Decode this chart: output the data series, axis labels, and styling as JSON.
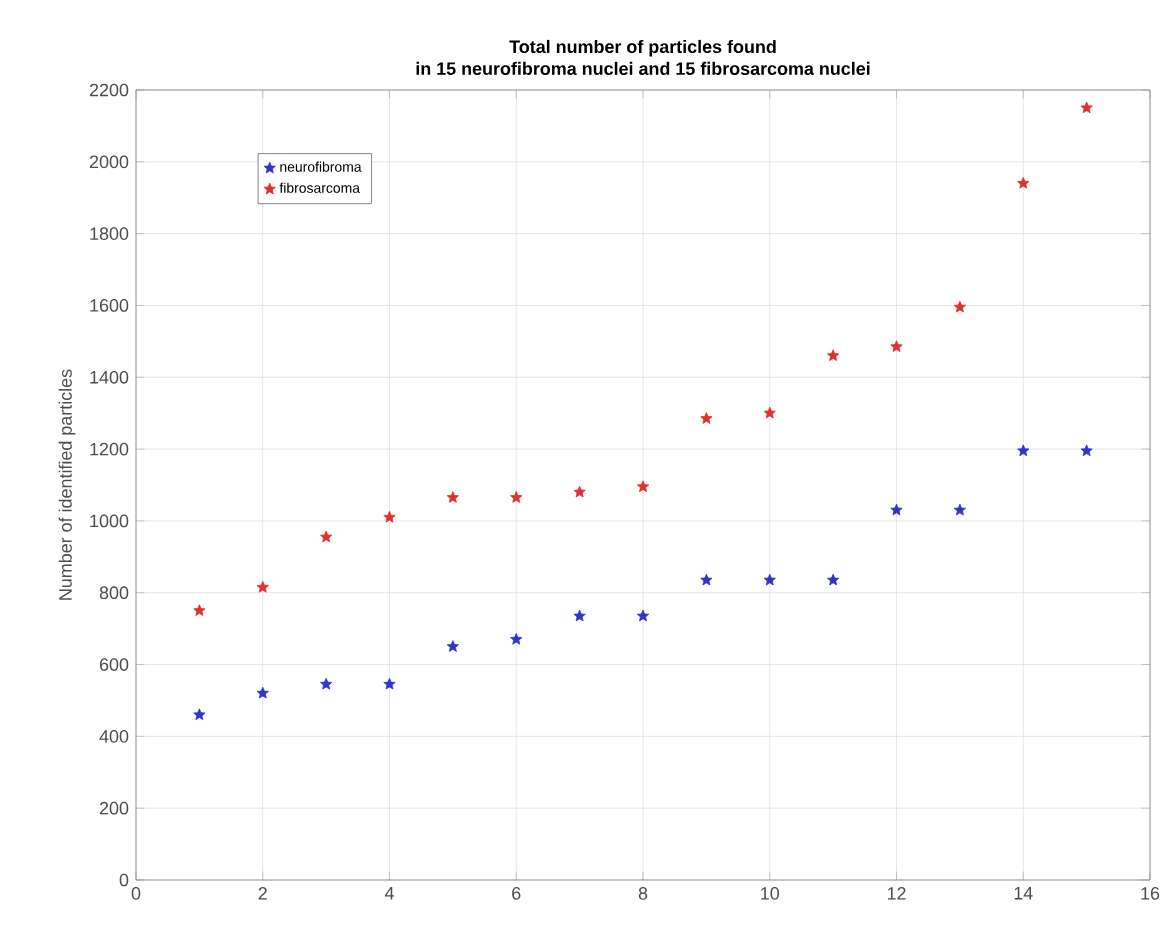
{
  "chart_data": {
    "type": "scatter",
    "title": "Total number of particles found\nin 15 neurofibroma nuclei and 15 fibrosarcoma nuclei",
    "ylabel": "Number of identified particles",
    "x": [
      1,
      2,
      3,
      4,
      5,
      6,
      7,
      8,
      9,
      10,
      11,
      12,
      13,
      14,
      15
    ],
    "series": [
      {
        "name": "neurofibroma",
        "color": "#3333cc",
        "values": [
          460,
          520,
          545,
          545,
          650,
          670,
          735,
          735,
          835,
          835,
          835,
          1030,
          1030,
          1195,
          1195
        ]
      },
      {
        "name": "fibrosarcoma",
        "color": "#e03030",
        "values": [
          750,
          815,
          955,
          1010,
          1065,
          1065,
          1080,
          1095,
          1285,
          1300,
          1460,
          1485,
          1595,
          1940,
          2150
        ]
      }
    ],
    "xlim": [
      0,
      16
    ],
    "xticks": [
      0,
      2,
      4,
      6,
      8,
      10,
      12,
      14,
      16
    ],
    "ylim": [
      0,
      2200
    ],
    "yticks": [
      0,
      200,
      400,
      600,
      800,
      1000,
      1200,
      1400,
      1600,
      1800,
      2000,
      2200
    ],
    "grid": true,
    "legend": "top left",
    "marker": "star"
  }
}
